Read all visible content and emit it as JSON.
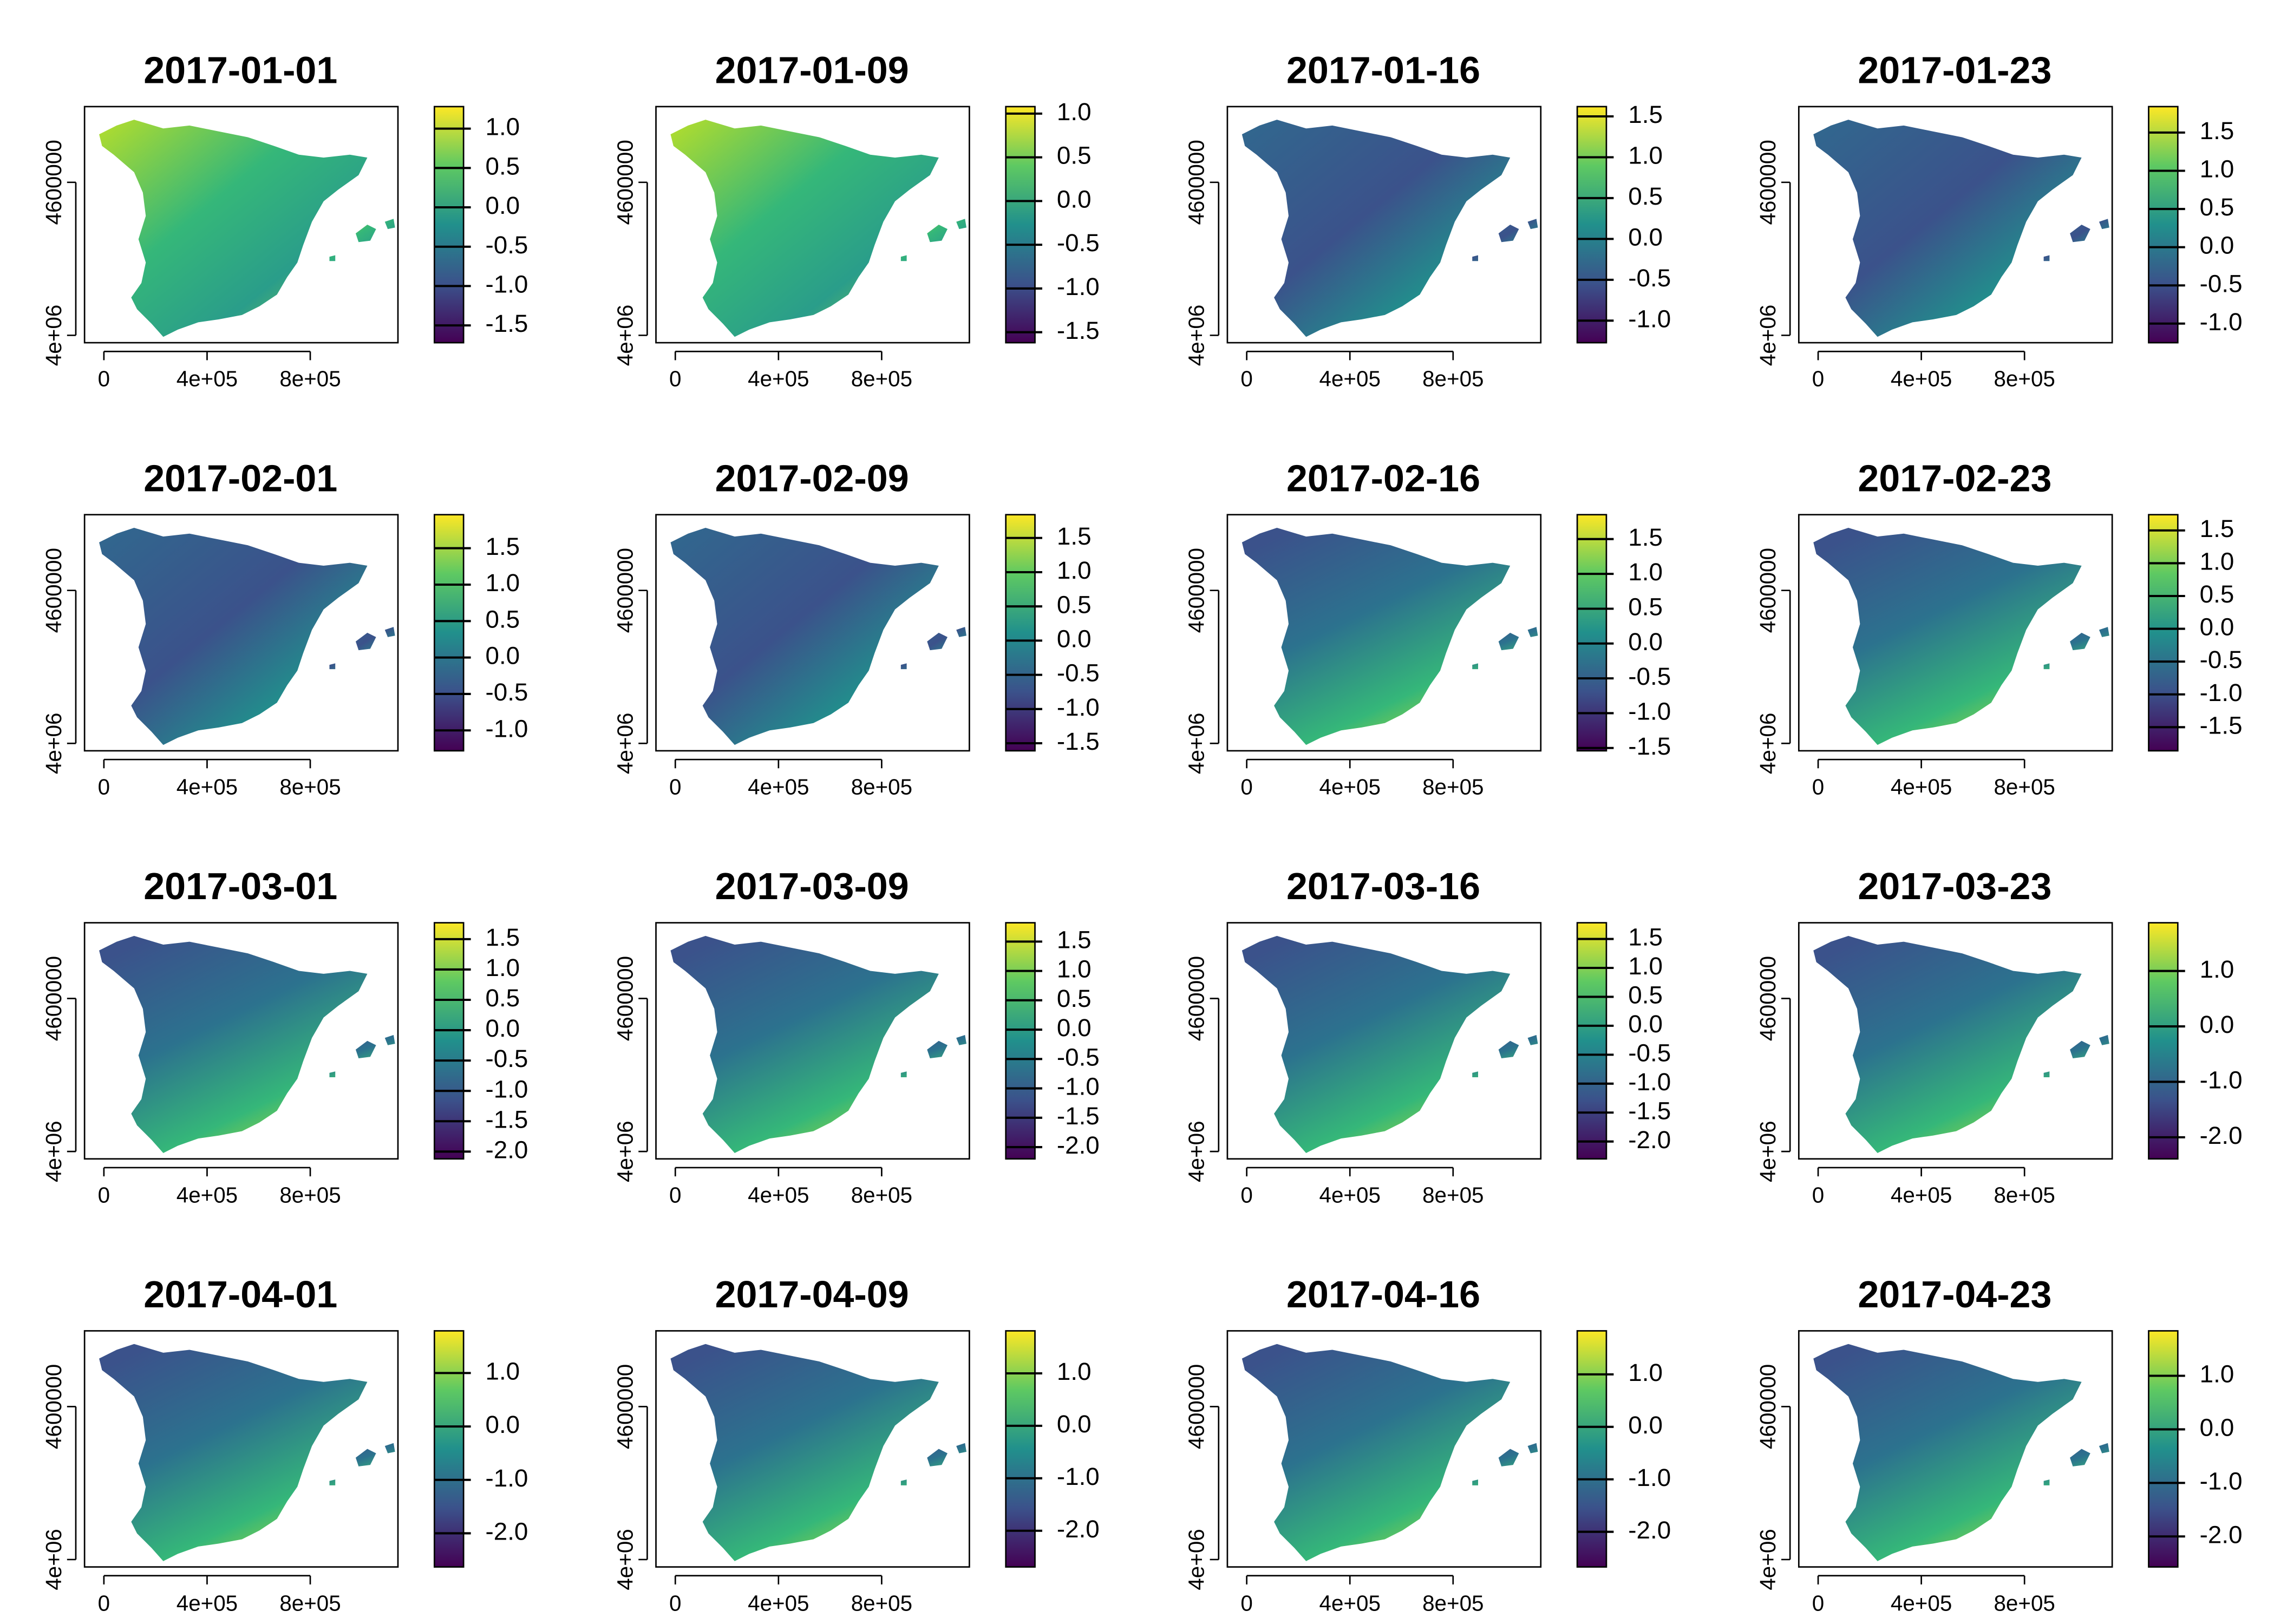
{
  "axes": {
    "xlim": [
      -75000,
      1140000
    ],
    "xticks": [
      0,
      {
        "value": 400000,
        "label": "4e+05"
      },
      {
        "value": 800000,
        "label": "8e+05"
      }
    ],
    "ylim": [
      3971000,
      4897000
    ],
    "yticks": [
      {
        "value": 4000000,
        "label": "4e+06"
      },
      4600000
    ]
  },
  "panels": [
    {
      "title": "2017-01-01",
      "colorbar": {
        "lim": [
          -1.72,
          1.28
        ],
        "ticks": [
          {
            "value": 1,
            "label": "1.0"
          },
          0.5,
          {
            "value": 0,
            "label": "0.0"
          },
          -0.5,
          {
            "value": -1,
            "label": "-1.0"
          },
          -1.5
        ]
      }
    },
    {
      "title": "2017-01-09",
      "colorbar": {
        "lim": [
          -1.62,
          1.08
        ],
        "ticks": [
          {
            "value": 1,
            "label": "1.0"
          },
          0.5,
          {
            "value": 0,
            "label": "0.0"
          },
          -0.5,
          {
            "value": -1,
            "label": "-1.0"
          },
          -1.5
        ]
      }
    },
    {
      "title": "2017-01-16",
      "colorbar": {
        "lim": [
          -1.27,
          1.62
        ],
        "ticks": [
          1.5,
          {
            "value": 1,
            "label": "1.0"
          },
          0.5,
          {
            "value": 0,
            "label": "0.0"
          },
          -0.5,
          {
            "value": -1,
            "label": "-1.0"
          }
        ]
      }
    },
    {
      "title": "2017-01-23",
      "colorbar": {
        "lim": [
          -1.25,
          1.84
        ],
        "ticks": [
          1.5,
          {
            "value": 1,
            "label": "1.0"
          },
          0.5,
          {
            "value": 0,
            "label": "0.0"
          },
          -0.5,
          {
            "value": -1,
            "label": "-1.0"
          }
        ]
      }
    },
    {
      "title": "2017-02-01",
      "colorbar": {
        "lim": [
          -1.28,
          1.96
        ],
        "ticks": [
          1.5,
          {
            "value": 1,
            "label": "1.0"
          },
          0.5,
          {
            "value": 0,
            "label": "0.0"
          },
          -0.5,
          {
            "value": -1,
            "label": "-1.0"
          }
        ]
      }
    },
    {
      "title": "2017-02-09",
      "colorbar": {
        "lim": [
          -1.61,
          1.84
        ],
        "ticks": [
          1.5,
          {
            "value": 1,
            "label": "1.0"
          },
          0.5,
          {
            "value": 0,
            "label": "0.0"
          },
          -0.5,
          {
            "value": -1,
            "label": "-1.0"
          },
          -1.5
        ]
      }
    },
    {
      "title": "2017-02-16",
      "colorbar": {
        "lim": [
          -1.54,
          1.85
        ],
        "ticks": [
          1.5,
          {
            "value": 1,
            "label": "1.0"
          },
          0.5,
          {
            "value": 0,
            "label": "0.0"
          },
          -0.5,
          {
            "value": -1,
            "label": "-1.0"
          },
          -1.5
        ]
      }
    },
    {
      "title": "2017-02-23",
      "colorbar": {
        "lim": [
          -1.86,
          1.74
        ],
        "ticks": [
          1.5,
          {
            "value": 1,
            "label": "1.0"
          },
          0.5,
          {
            "value": 0,
            "label": "0.0"
          },
          -0.5,
          {
            "value": -1,
            "label": "-1.0"
          },
          -1.5
        ]
      }
    },
    {
      "title": "2017-03-01",
      "colorbar": {
        "lim": [
          -2.12,
          1.77
        ],
        "ticks": [
          1.5,
          {
            "value": 1,
            "label": "1.0"
          },
          0.5,
          {
            "value": 0,
            "label": "0.0"
          },
          -0.5,
          {
            "value": -1,
            "label": "-1.0"
          },
          -1.5,
          {
            "value": -2,
            "label": "-2.0"
          }
        ]
      }
    },
    {
      "title": "2017-03-09",
      "colorbar": {
        "lim": [
          -2.2,
          1.82
        ],
        "ticks": [
          1.5,
          {
            "value": 1,
            "label": "1.0"
          },
          0.5,
          {
            "value": 0,
            "label": "0.0"
          },
          -0.5,
          {
            "value": -1,
            "label": "-1.0"
          },
          -1.5,
          {
            "value": -2,
            "label": "-2.0"
          }
        ]
      }
    },
    {
      "title": "2017-03-16",
      "colorbar": {
        "lim": [
          -2.3,
          1.78
        ],
        "ticks": [
          1.5,
          {
            "value": 1,
            "label": "1.0"
          },
          0.5,
          {
            "value": 0,
            "label": "0.0"
          },
          -0.5,
          {
            "value": -1,
            "label": "-1.0"
          },
          -1.5,
          {
            "value": -2,
            "label": "-2.0"
          }
        ]
      }
    },
    {
      "title": "2017-03-23",
      "colorbar": {
        "lim": [
          -2.39,
          1.87
        ],
        "ticks": [
          {
            "value": 1,
            "label": "1.0"
          },
          {
            "value": 0,
            "label": "0.0"
          },
          {
            "value": -1,
            "label": "-1.0"
          },
          {
            "value": -2,
            "label": "-2.0"
          }
        ]
      }
    },
    {
      "title": "2017-04-01",
      "colorbar": {
        "lim": [
          -2.63,
          1.79
        ],
        "ticks": [
          {
            "value": 1,
            "label": "1.0"
          },
          {
            "value": 0,
            "label": "0.0"
          },
          {
            "value": -1,
            "label": "-1.0"
          },
          {
            "value": -2,
            "label": "-2.0"
          }
        ]
      }
    },
    {
      "title": "2017-04-09",
      "colorbar": {
        "lim": [
          -2.69,
          1.81
        ],
        "ticks": [
          {
            "value": 1,
            "label": "1.0"
          },
          {
            "value": 0,
            "label": "0.0"
          },
          {
            "value": -1,
            "label": "-1.0"
          },
          {
            "value": -2,
            "label": "-2.0"
          }
        ]
      }
    },
    {
      "title": "2017-04-16",
      "colorbar": {
        "lim": [
          -2.67,
          1.83
        ],
        "ticks": [
          {
            "value": 1,
            "label": "1.0"
          },
          {
            "value": 0,
            "label": "0.0"
          },
          {
            "value": -1,
            "label": "-1.0"
          },
          {
            "value": -2,
            "label": "-2.0"
          }
        ]
      }
    },
    {
      "title": "2017-04-23",
      "colorbar": {
        "lim": [
          -2.57,
          1.84
        ],
        "ticks": [
          {
            "value": 1,
            "label": "1.0"
          },
          {
            "value": 0,
            "label": "0.0"
          },
          {
            "value": -1,
            "label": "-1.0"
          },
          {
            "value": -2,
            "label": "-2.0"
          }
        ]
      }
    }
  ]
}
